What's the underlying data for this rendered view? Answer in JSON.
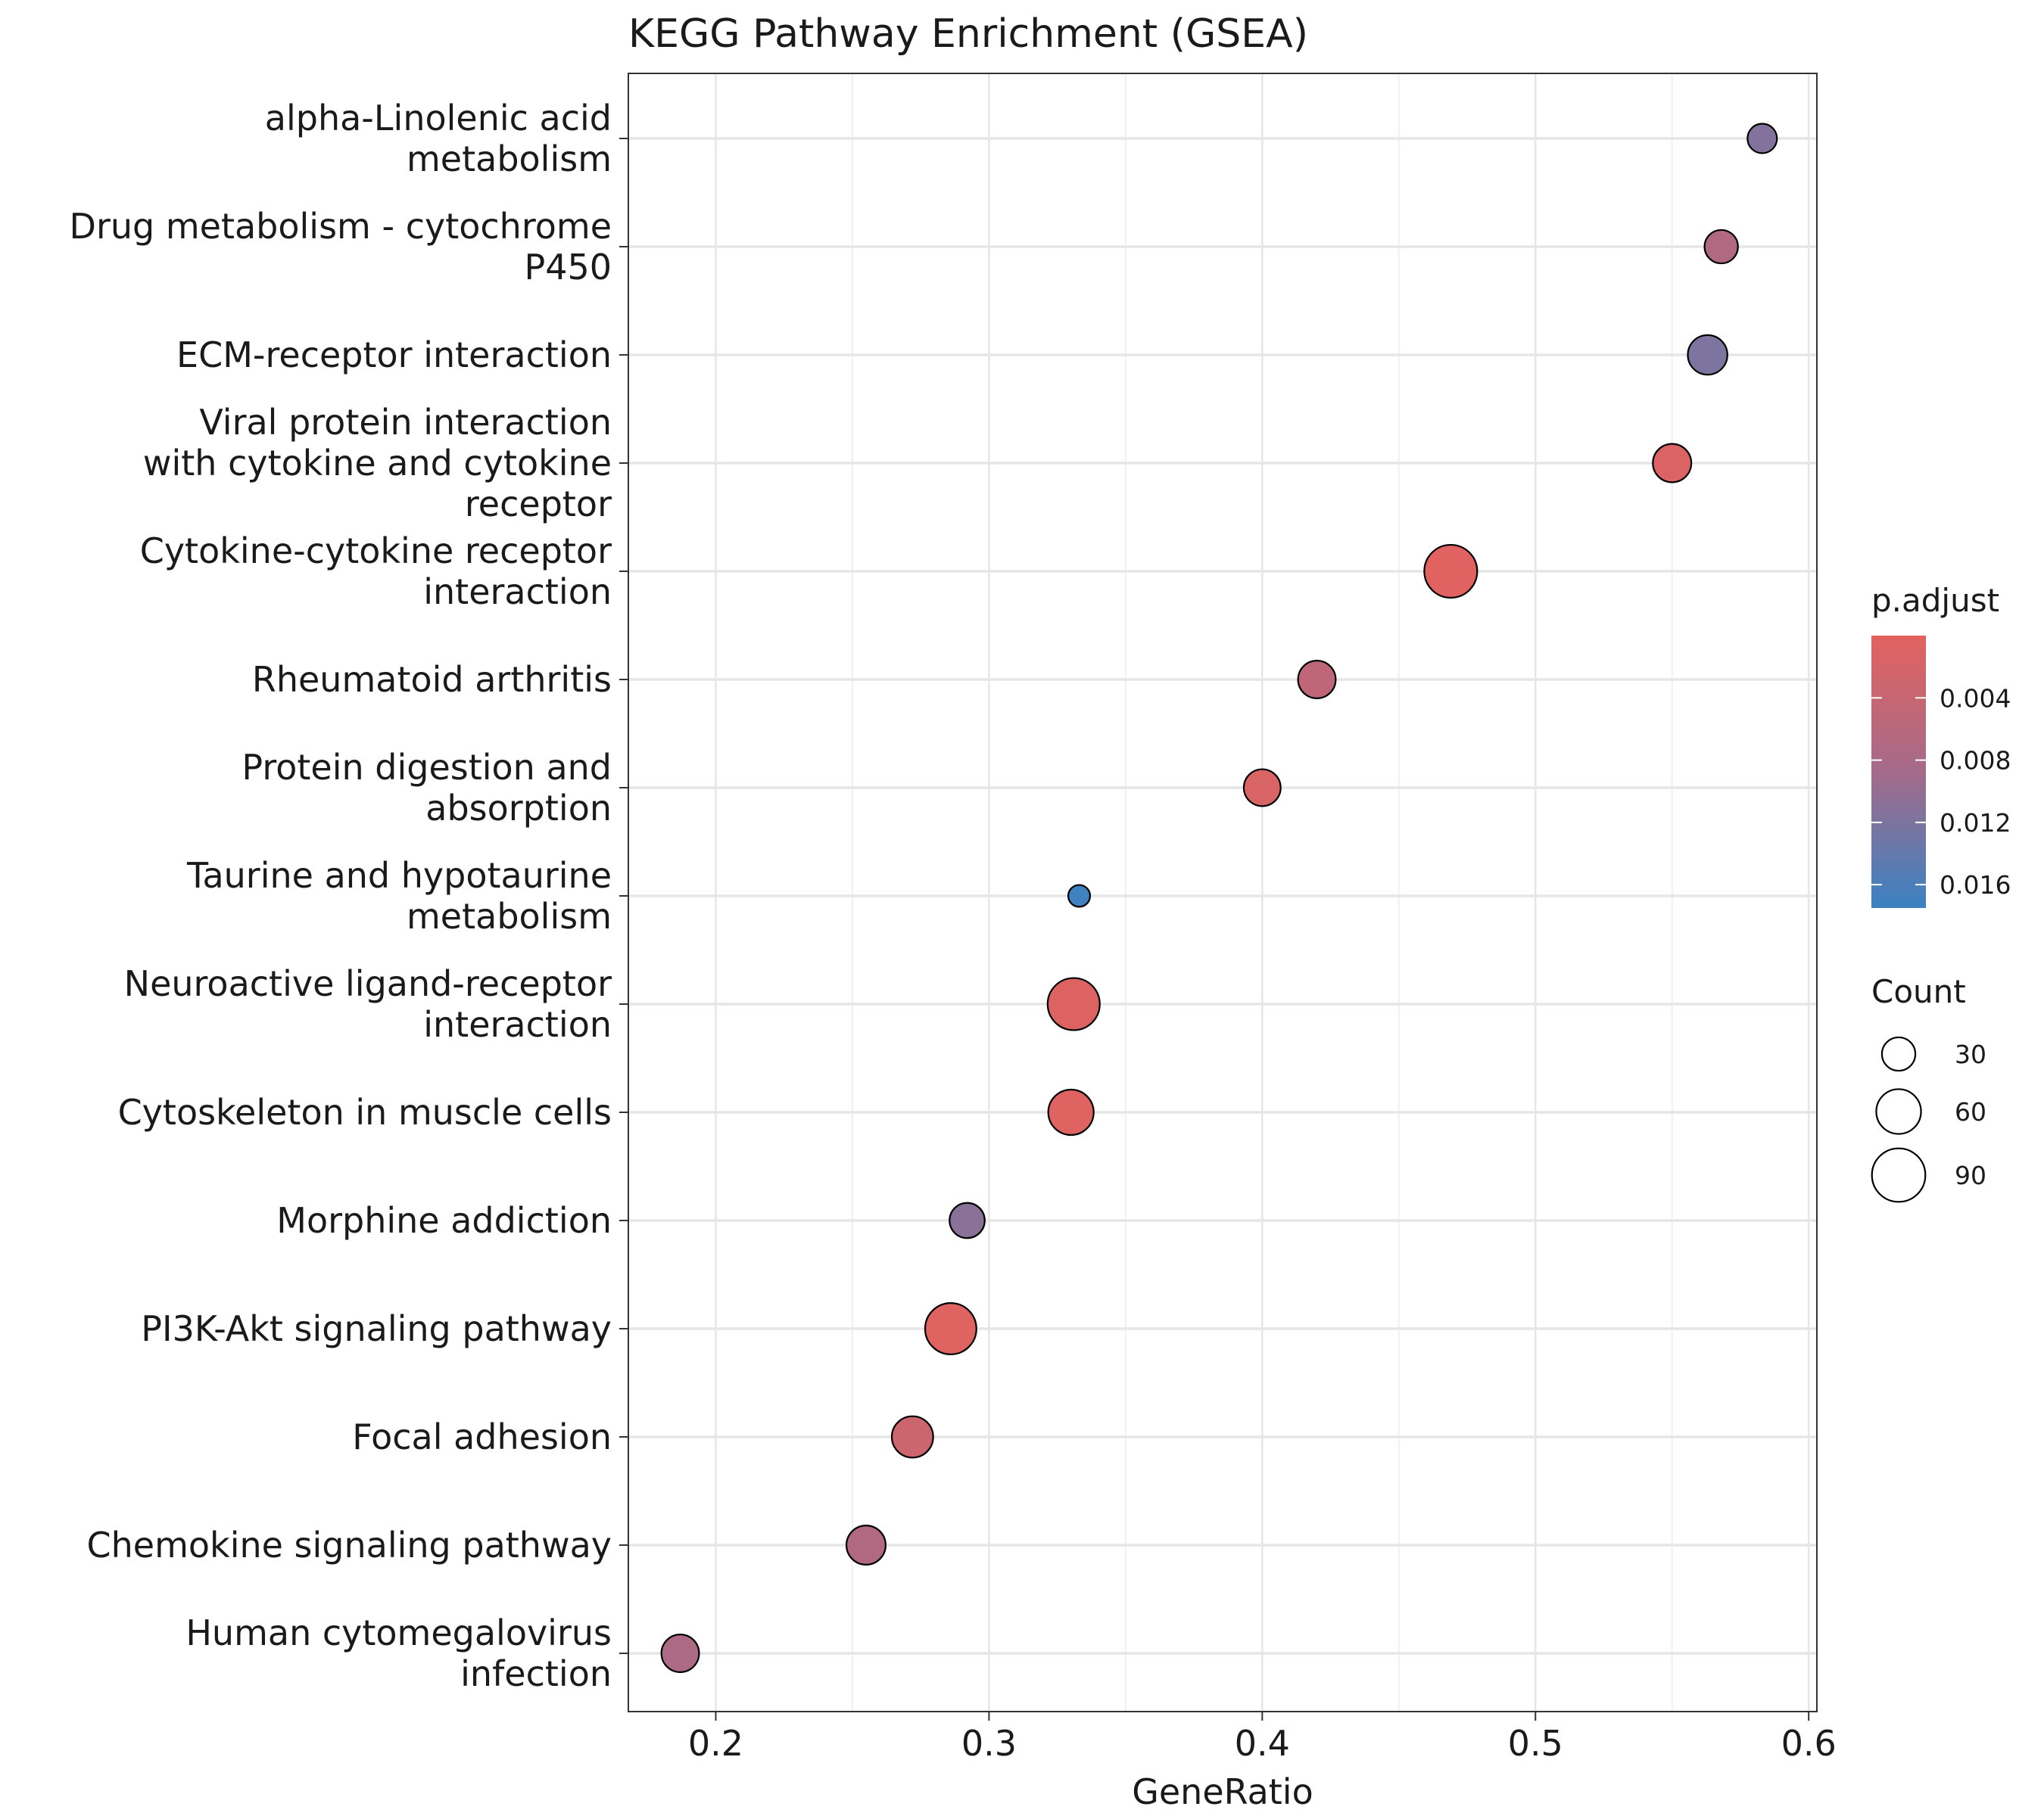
{
  "chart_data": {
    "type": "scatter",
    "title": "KEGG Pathway Enrichment (GSEA)",
    "xlabel": "GeneRatio",
    "ylabel": "",
    "xlim": [
      0.168,
      0.603
    ],
    "xticks": [
      0.2,
      0.3,
      0.4,
      0.5,
      0.6
    ],
    "xtick_labels": [
      "0.2",
      "0.3",
      "0.4",
      "0.5",
      "0.6"
    ],
    "grid": true,
    "categories": [
      [
        "alpha-Linolenic acid",
        "metabolism"
      ],
      [
        "Drug metabolism - cytochrome",
        "P450"
      ],
      [
        "ECM-receptor interaction"
      ],
      [
        "Viral protein interaction",
        "with cytokine and cytokine",
        "receptor"
      ],
      [
        "Cytokine-cytokine receptor",
        "interaction"
      ],
      [
        "Rheumatoid arthritis"
      ],
      [
        "Protein digestion and",
        "absorption"
      ],
      [
        "Taurine and hypotaurine",
        "metabolism"
      ],
      [
        "Neuroactive ligand-receptor",
        "interaction"
      ],
      [
        "Cytoskeleton in muscle cells"
      ],
      [
        "Morphine addiction"
      ],
      [
        "PI3K-Akt signaling pathway"
      ],
      [
        "Focal adhesion"
      ],
      [
        "Chemokine signaling pathway"
      ],
      [
        "Human cytomegalovirus",
        "infection"
      ]
    ],
    "points": [
      {
        "gene_ratio": 0.583,
        "count": 22,
        "p_adjust": 0.0115
      },
      {
        "gene_ratio": 0.568,
        "count": 30,
        "p_adjust": 0.007
      },
      {
        "gene_ratio": 0.563,
        "count": 45,
        "p_adjust": 0.012
      },
      {
        "gene_ratio": 0.55,
        "count": 42,
        "p_adjust": 0.001
      },
      {
        "gene_ratio": 0.469,
        "count": 88,
        "p_adjust": 0.0003
      },
      {
        "gene_ratio": 0.42,
        "count": 40,
        "p_adjust": 0.005
      },
      {
        "gene_ratio": 0.4,
        "count": 38,
        "p_adjust": 0.0015
      },
      {
        "gene_ratio": 0.333,
        "count": 10,
        "p_adjust": 0.017
      },
      {
        "gene_ratio": 0.331,
        "count": 85,
        "p_adjust": 0.0008
      },
      {
        "gene_ratio": 0.33,
        "count": 62,
        "p_adjust": 0.0005
      },
      {
        "gene_ratio": 0.292,
        "count": 34,
        "p_adjust": 0.011
      },
      {
        "gene_ratio": 0.286,
        "count": 82,
        "p_adjust": 0.0005
      },
      {
        "gene_ratio": 0.272,
        "count": 50,
        "p_adjust": 0.003
      },
      {
        "gene_ratio": 0.255,
        "count": 44,
        "p_adjust": 0.007
      },
      {
        "gene_ratio": 0.187,
        "count": 40,
        "p_adjust": 0.0075
      }
    ],
    "color_legend": {
      "title": "p.adjust",
      "ticks": [
        0.004,
        0.008,
        0.012,
        0.016
      ],
      "tick_labels": [
        "0.004",
        "0.008",
        "0.012",
        "0.016"
      ],
      "range": [
        0.0,
        0.0175
      ],
      "low_color": "#e3625f",
      "high_color": "#3a82c2"
    },
    "size_legend": {
      "title": "Count",
      "values": [
        30,
        60,
        90
      ],
      "labels": [
        "30",
        "60",
        "90"
      ]
    },
    "legend_position": "right"
  }
}
